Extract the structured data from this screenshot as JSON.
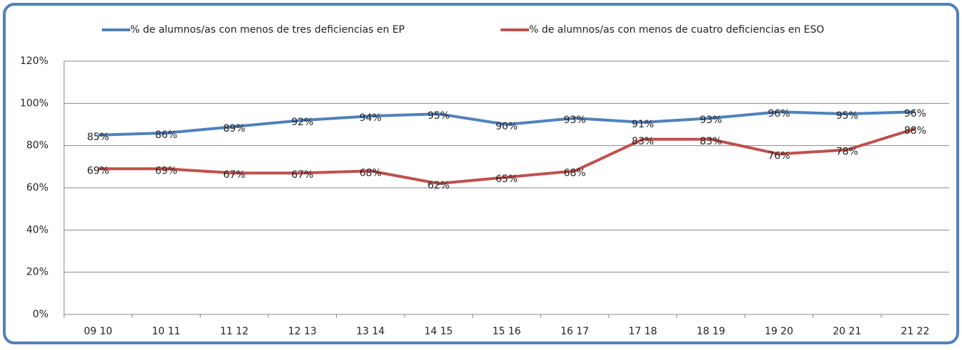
{
  "chart_data": {
    "type": "line",
    "categories": [
      "09 10",
      "10 11",
      "11 12",
      "12 13",
      "13 14",
      "14 15",
      "15 16",
      "16 17",
      "17 18",
      "18 19",
      "19 20",
      "20 21",
      "21 22"
    ],
    "series": [
      {
        "name": "% de alumnos/as con menos de tres deficiencias en EP",
        "color": "#4f81bd",
        "values": [
          85,
          86,
          89,
          92,
          94,
          95,
          90,
          93,
          91,
          93,
          96,
          95,
          96
        ],
        "value_labels": [
          "85%",
          "86%",
          "89%",
          "92%",
          "94%",
          "95%",
          "90%",
          "93%",
          "91%",
          "93%",
          "96%",
          "95%",
          "96%"
        ]
      },
      {
        "name": "% de alumnos/as con menos de cuatro deficiencias en ESO",
        "color": "#c0504d",
        "values": [
          69,
          69,
          67,
          67,
          68,
          62,
          65,
          68,
          83,
          83,
          76,
          78,
          88
        ],
        "value_labels": [
          "69%",
          "69%",
          "67%",
          "67%",
          "68%",
          "62%",
          "65%",
          "68%",
          "83%",
          "83%",
          "76%",
          "78%",
          "88%"
        ]
      }
    ],
    "ylim": [
      0,
      120
    ],
    "yticks": [
      {
        "value": 0,
        "label": "0%"
      },
      {
        "value": 20,
        "label": "20%"
      },
      {
        "value": 40,
        "label": "40%"
      },
      {
        "value": 60,
        "label": "60%"
      },
      {
        "value": 80,
        "label": "80%"
      },
      {
        "value": 100,
        "label": "100%"
      },
      {
        "value": 120,
        "label": "120%"
      }
    ],
    "grid": true,
    "legend": "top"
  }
}
